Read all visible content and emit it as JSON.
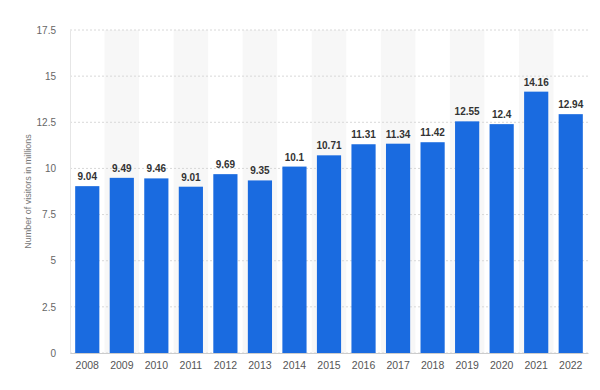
{
  "chart_data": {
    "type": "bar",
    "y_label": "Number of visitors in millions",
    "categories": [
      "2008",
      "2009",
      "2010",
      "2011",
      "2012",
      "2013",
      "2014",
      "2015",
      "2016",
      "2017",
      "2018",
      "2019",
      "2020",
      "2021",
      "2022"
    ],
    "values": [
      9.04,
      9.49,
      9.46,
      9.01,
      9.69,
      9.35,
      10.1,
      10.71,
      11.31,
      11.34,
      11.42,
      12.55,
      12.4,
      14.16,
      12.94
    ],
    "color": "#1a6be0",
    "ylim": [
      0,
      17.5
    ],
    "yticks": [
      0,
      2.5,
      5,
      7.5,
      10,
      12.5,
      15,
      17.5
    ],
    "grid": true,
    "data_labels": true
  }
}
